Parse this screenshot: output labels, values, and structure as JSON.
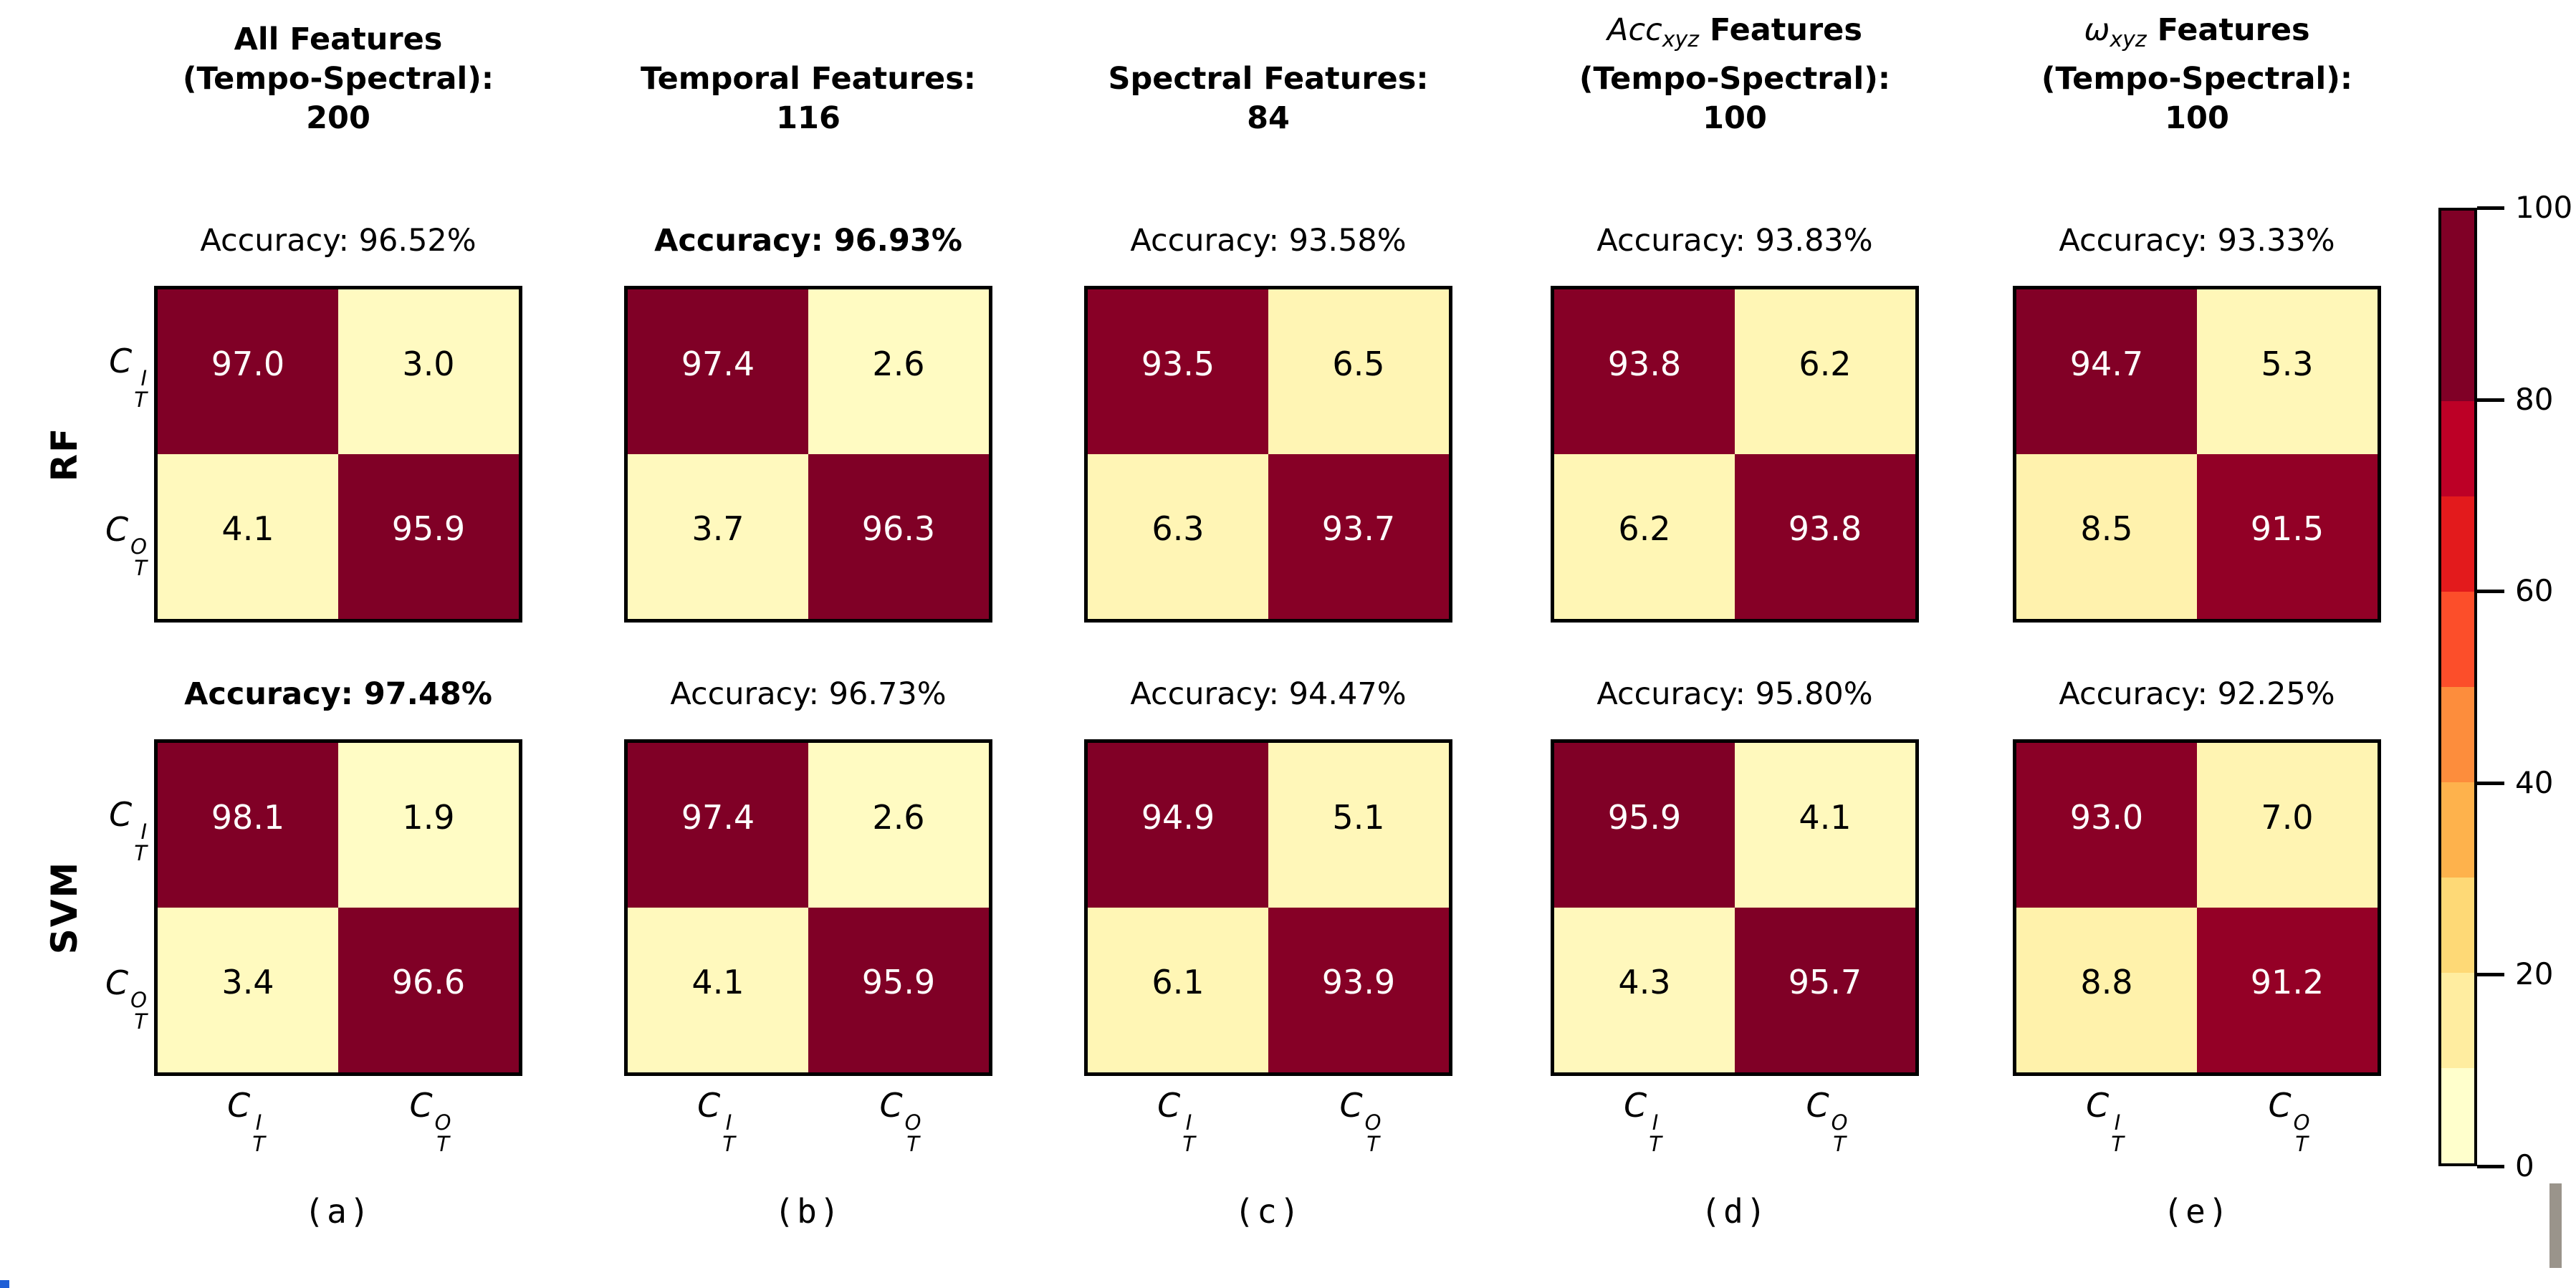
{
  "figure_type": "confusion-matrix-comparison-grid",
  "colors": {
    "background": "#ffffff",
    "matrix_border": "#000000",
    "colormap_anchors": [
      "#ffffcc",
      "#ffeda0",
      "#fed976",
      "#feb24c",
      "#fd8d3c",
      "#fc4e2a",
      "#e31a1c",
      "#bd0026",
      "#800026"
    ],
    "high_cell_text": "#ffffff",
    "low_cell_text": "#000000",
    "artifact_gray": "#9a948b",
    "artifact_blue": "#1f5fd6"
  },
  "chart_data": {
    "type": "heatmap",
    "colormap": "YlOrRd",
    "value_range": [
      0,
      100
    ],
    "rows": [
      "RF",
      "SVM"
    ],
    "classes": [
      "C_T^I",
      "C_T^O"
    ],
    "class_labels": [
      {
        "base": "C",
        "sup": "I",
        "sub": "T"
      },
      {
        "base": "C",
        "sup": "O",
        "sub": "T"
      }
    ],
    "colorbar": {
      "ticks": [
        "100",
        "80",
        "60",
        "40",
        "20",
        "0"
      ],
      "tick_fracs_from_top": [
        0,
        0.2,
        0.4,
        0.6,
        0.8,
        1.0
      ],
      "segment_colors_top_to_bottom": [
        "#800026",
        "#bd0026",
        "#e31a1c",
        "#fc4e2a",
        "#fd8d3c",
        "#feb24c",
        "#fed976",
        "#ffeda0",
        "#ffffcc"
      ],
      "segment_heights_pct": [
        20,
        10,
        10,
        10,
        10,
        10,
        10,
        10,
        10
      ]
    },
    "panels": [
      {
        "caption": "(a)",
        "title_text": "All Features (Tempo-Spectral): 200",
        "title_lines": [
          [
            {
              "t": "All Features",
              "s": "b"
            }
          ],
          [
            {
              "t": "(Tempo-Spectral):",
              "s": "b"
            }
          ],
          [
            {
              "t": "200",
              "s": "b"
            }
          ]
        ],
        "acc_rf": "Accuracy: 96.52%",
        "acc_rf_bold": false,
        "cells_rf": [
          [
            97.0,
            3.0
          ],
          [
            4.1,
            95.9
          ]
        ],
        "acc_svm": "Accuracy: 97.48%",
        "acc_svm_bold": true,
        "cells_svm": [
          [
            98.1,
            1.9
          ],
          [
            3.4,
            96.6
          ]
        ]
      },
      {
        "caption": "(b)",
        "title_text": "Temporal Features: 116",
        "title_lines": [
          [
            {
              "t": "Temporal Features:",
              "s": "b"
            }
          ],
          [
            {
              "t": "116",
              "s": "b"
            }
          ]
        ],
        "acc_rf": "Accuracy: 96.93%",
        "acc_rf_bold": true,
        "cells_rf": [
          [
            97.4,
            2.6
          ],
          [
            3.7,
            96.3
          ]
        ],
        "acc_svm": "Accuracy: 96.73%",
        "acc_svm_bold": false,
        "cells_svm": [
          [
            97.4,
            2.6
          ],
          [
            4.1,
            95.9
          ]
        ]
      },
      {
        "caption": "(c)",
        "title_text": "Spectral Features: 84",
        "title_lines": [
          [
            {
              "t": "Spectral Features:",
              "s": "b"
            }
          ],
          [
            {
              "t": "84",
              "s": "b"
            }
          ]
        ],
        "acc_rf": "Accuracy: 93.58%",
        "acc_rf_bold": false,
        "cells_rf": [
          [
            93.5,
            6.5
          ],
          [
            6.3,
            93.7
          ]
        ],
        "acc_svm": "Accuracy: 94.47%",
        "acc_svm_bold": false,
        "cells_svm": [
          [
            94.9,
            5.1
          ],
          [
            6.1,
            93.9
          ]
        ]
      },
      {
        "caption": "(d)",
        "title_text": "Acc_xyz Features (Tempo-Spectral): 100",
        "title_lines": [
          [
            {
              "t": "Acc",
              "s": "mi"
            },
            {
              "t": "xyz",
              "s": "msub"
            },
            {
              "t": " Features",
              "s": "b"
            }
          ],
          [
            {
              "t": "(Tempo-Spectral):",
              "s": "b"
            }
          ],
          [
            {
              "t": "100",
              "s": "b"
            }
          ]
        ],
        "acc_rf": "Accuracy: 93.83%",
        "acc_rf_bold": false,
        "cells_rf": [
          [
            93.8,
            6.2
          ],
          [
            6.2,
            93.8
          ]
        ],
        "acc_svm": "Accuracy: 95.80%",
        "acc_svm_bold": false,
        "cells_svm": [
          [
            95.9,
            4.1
          ],
          [
            4.3,
            95.7
          ]
        ]
      },
      {
        "caption": "(e)",
        "title_text": "ω_xyz Features (Tempo-Spectral): 100",
        "title_lines": [
          [
            {
              "t": "ω",
              "s": "mi"
            },
            {
              "t": "xyz",
              "s": "msub"
            },
            {
              "t": " Features",
              "s": "b"
            }
          ],
          [
            {
              "t": "(Tempo-Spectral):",
              "s": "b"
            }
          ],
          [
            {
              "t": "100",
              "s": "b"
            }
          ]
        ],
        "acc_rf": "Accuracy: 93.33%",
        "acc_rf_bold": false,
        "cells_rf": [
          [
            94.7,
            5.3
          ],
          [
            8.5,
            91.5
          ]
        ],
        "acc_svm": "Accuracy: 92.25%",
        "acc_svm_bold": false,
        "cells_svm": [
          [
            93.0,
            7.0
          ],
          [
            8.8,
            91.2
          ]
        ]
      }
    ]
  }
}
